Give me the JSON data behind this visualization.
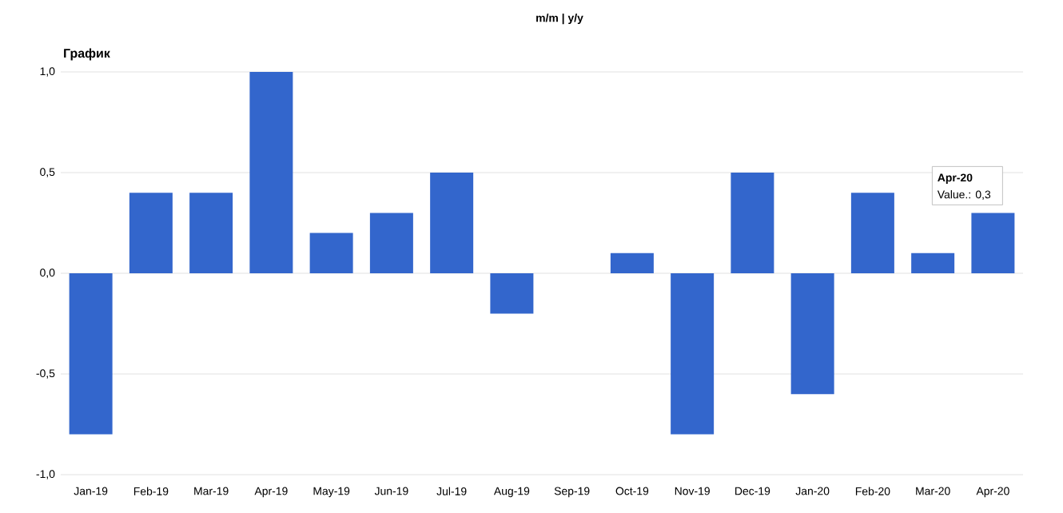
{
  "chart_data": {
    "type": "bar",
    "title": "График",
    "subtitle": "m/m | y/y",
    "categories": [
      "Jan-19",
      "Feb-19",
      "Mar-19",
      "Apr-19",
      "May-19",
      "Jun-19",
      "Jul-19",
      "Aug-19",
      "Sep-19",
      "Oct-19",
      "Nov-19",
      "Dec-19",
      "Jan-20",
      "Feb-20",
      "Mar-20",
      "Apr-20"
    ],
    "values": [
      -0.8,
      0.4,
      0.4,
      1.0,
      0.2,
      0.3,
      0.5,
      -0.2,
      0,
      0.1,
      -0.8,
      0.5,
      -0.6,
      0.4,
      0.1,
      0.3
    ],
    "color": "#3366cc",
    "ylim": [
      -1,
      1
    ],
    "yticks": [
      {
        "value": -1,
        "label": "-1,0"
      },
      {
        "value": -0.5,
        "label": "-0,5"
      },
      {
        "value": 0,
        "label": "0,0"
      },
      {
        "value": 0.5,
        "label": "0,5"
      },
      {
        "value": 1,
        "label": "1,0"
      }
    ],
    "grid": "y",
    "annotations": [
      "Apr-20",
      {
        "text": "Value.: 0,3",
        "x": "Apr-20",
        "y": 0.3
      }
    ]
  }
}
